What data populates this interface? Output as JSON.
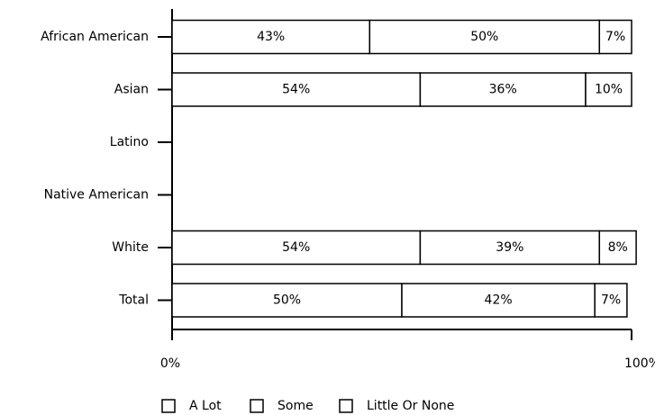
{
  "chart_data": {
    "type": "bar",
    "orientation": "horizontal",
    "stacked": true,
    "title": "",
    "xlabel": "",
    "ylabel": "",
    "xlim": [
      0,
      100
    ],
    "grid": false,
    "legend_placement": "bottom",
    "x_ticks": [
      "0%",
      "100%"
    ],
    "categories": [
      "African American",
      "Asian",
      "Latino",
      "Native American",
      "White",
      "Total"
    ],
    "series": [
      {
        "name": "A Lot",
        "color": "#ffffff",
        "values": [
          43,
          54,
          null,
          null,
          54,
          50
        ]
      },
      {
        "name": "Some",
        "color": "#ffffff",
        "values": [
          50,
          36,
          null,
          null,
          39,
          42
        ]
      },
      {
        "name": "Little Or None",
        "color": "#ffffff",
        "values": [
          7,
          10,
          null,
          null,
          8,
          7
        ]
      }
    ]
  }
}
